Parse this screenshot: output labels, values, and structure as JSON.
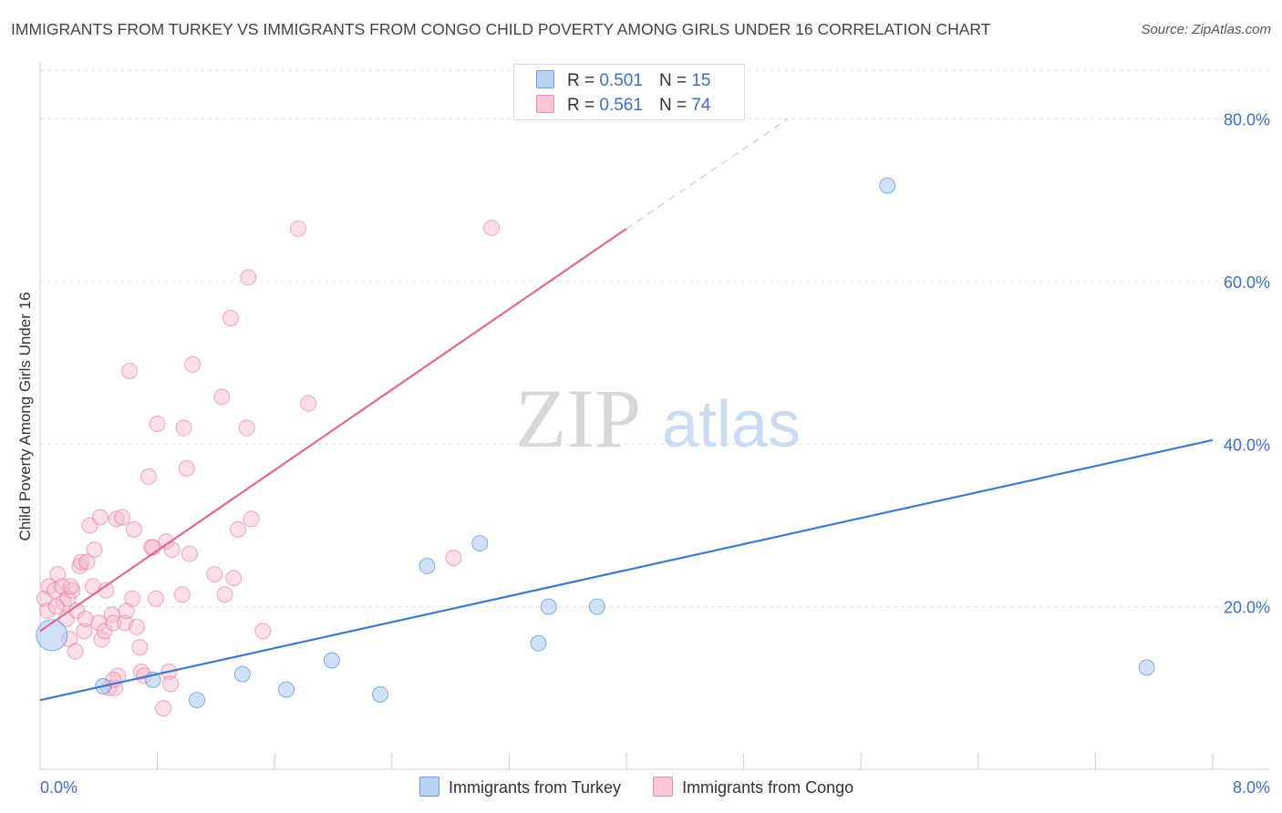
{
  "chart_data": {
    "type": "scatter",
    "title": "IMMIGRANTS FROM TURKEY VS IMMIGRANTS FROM CONGO CHILD POVERTY AMONG GIRLS UNDER 16 CORRELATION CHART",
    "source": "Source: ZipAtlas.com",
    "xlabel": "",
    "ylabel": "Child Poverty Among Girls Under 16",
    "xlim": [
      0,
      8
    ],
    "ylim": [
      0,
      86
    ],
    "x_tick_labels": {
      "min": "0.0%",
      "max": "8.0%"
    },
    "y_ticks": [
      {
        "value": 20,
        "label": "20.0%"
      },
      {
        "value": 40,
        "label": "40.0%"
      },
      {
        "value": 60,
        "label": "60.0%"
      },
      {
        "value": 80,
        "label": "80.0%"
      }
    ],
    "watermark": {
      "zip": "ZIP",
      "atlas": "atlas"
    },
    "legend": {
      "r_label": "R =",
      "n_label": "N ="
    },
    "series": [
      {
        "name": "Immigrants from Turkey",
        "color": "#3b7bd4",
        "fill": "#a9c8f0",
        "R": "0.501",
        "N": "15",
        "trend": {
          "x0": 0,
          "y0": 8.5,
          "x1": 8,
          "y1": 40.5
        },
        "points": [
          {
            "x": 0.08,
            "y": 16.5,
            "big": true
          },
          {
            "x": 0.43,
            "y": 10.2
          },
          {
            "x": 0.77,
            "y": 11.0
          },
          {
            "x": 1.07,
            "y": 8.5
          },
          {
            "x": 1.38,
            "y": 11.7
          },
          {
            "x": 1.68,
            "y": 9.8
          },
          {
            "x": 1.99,
            "y": 13.4
          },
          {
            "x": 2.32,
            "y": 9.2
          },
          {
            "x": 2.64,
            "y": 25.0
          },
          {
            "x": 3.0,
            "y": 27.8
          },
          {
            "x": 3.4,
            "y": 15.5
          },
          {
            "x": 3.47,
            "y": 20.0
          },
          {
            "x": 3.8,
            "y": 20.0
          },
          {
            "x": 5.78,
            "y": 71.8
          },
          {
            "x": 7.55,
            "y": 12.5
          }
        ]
      },
      {
        "name": "Immigrants from Congo",
        "color": "#e5668f",
        "fill": "#f5b8cb",
        "R": "0.561",
        "N": "74",
        "trend": {
          "x0": 0,
          "y0": 17.0,
          "x1": 4.0,
          "y1": 66.5
        },
        "trend_ext": {
          "x0": 4.0,
          "y0": 66.5,
          "x1": 5.1,
          "y1": 80.0
        },
        "points": [
          {
            "x": 0.03,
            "y": 21.0
          },
          {
            "x": 0.05,
            "y": 19.5
          },
          {
            "x": 0.06,
            "y": 22.5
          },
          {
            "x": 0.1,
            "y": 22.0
          },
          {
            "x": 0.12,
            "y": 24.0
          },
          {
            "x": 0.15,
            "y": 22.5
          },
          {
            "x": 0.16,
            "y": 20.5
          },
          {
            "x": 0.18,
            "y": 18.5
          },
          {
            "x": 0.19,
            "y": 21.0
          },
          {
            "x": 0.2,
            "y": 16.0
          },
          {
            "x": 0.22,
            "y": 22.0
          },
          {
            "x": 0.24,
            "y": 14.5
          },
          {
            "x": 0.25,
            "y": 19.5
          },
          {
            "x": 0.27,
            "y": 25.0
          },
          {
            "x": 0.28,
            "y": 25.5
          },
          {
            "x": 0.3,
            "y": 17.0
          },
          {
            "x": 0.31,
            "y": 18.5
          },
          {
            "x": 0.32,
            "y": 25.5
          },
          {
            "x": 0.34,
            "y": 30.0
          },
          {
            "x": 0.36,
            "y": 22.5
          },
          {
            "x": 0.37,
            "y": 27.0
          },
          {
            "x": 0.4,
            "y": 18.0
          },
          {
            "x": 0.41,
            "y": 31.0
          },
          {
            "x": 0.42,
            "y": 16.0
          },
          {
            "x": 0.44,
            "y": 17.0
          },
          {
            "x": 0.45,
            "y": 22.0
          },
          {
            "x": 0.47,
            "y": 10.0
          },
          {
            "x": 0.49,
            "y": 19.0
          },
          {
            "x": 0.5,
            "y": 18.0
          },
          {
            "x": 0.51,
            "y": 10.0
          },
          {
            "x": 0.52,
            "y": 30.8
          },
          {
            "x": 0.53,
            "y": 11.5
          },
          {
            "x": 0.56,
            "y": 31.0
          },
          {
            "x": 0.58,
            "y": 18.0
          },
          {
            "x": 0.59,
            "y": 19.5
          },
          {
            "x": 0.61,
            "y": 49.0
          },
          {
            "x": 0.63,
            "y": 21.0
          },
          {
            "x": 0.64,
            "y": 29.5
          },
          {
            "x": 0.66,
            "y": 17.5
          },
          {
            "x": 0.68,
            "y": 15.0
          },
          {
            "x": 0.69,
            "y": 12.0
          },
          {
            "x": 0.71,
            "y": 11.5
          },
          {
            "x": 0.74,
            "y": 36.0
          },
          {
            "x": 0.76,
            "y": 27.3
          },
          {
            "x": 0.77,
            "y": 27.3
          },
          {
            "x": 0.79,
            "y": 21.0
          },
          {
            "x": 0.8,
            "y": 42.5
          },
          {
            "x": 0.84,
            "y": 7.5
          },
          {
            "x": 0.86,
            "y": 28.0
          },
          {
            "x": 0.88,
            "y": 12.0
          },
          {
            "x": 0.89,
            "y": 10.5
          },
          {
            "x": 0.9,
            "y": 27.0
          },
          {
            "x": 0.97,
            "y": 21.5
          },
          {
            "x": 0.98,
            "y": 42.0
          },
          {
            "x": 1.0,
            "y": 37.0
          },
          {
            "x": 1.02,
            "y": 26.5
          },
          {
            "x": 1.04,
            "y": 49.8
          },
          {
            "x": 1.19,
            "y": 24.0
          },
          {
            "x": 1.24,
            "y": 45.8
          },
          {
            "x": 1.26,
            "y": 21.5
          },
          {
            "x": 1.3,
            "y": 55.5
          },
          {
            "x": 1.32,
            "y": 23.5
          },
          {
            "x": 1.35,
            "y": 29.5
          },
          {
            "x": 1.41,
            "y": 42.0
          },
          {
            "x": 1.42,
            "y": 60.5
          },
          {
            "x": 1.44,
            "y": 30.8
          },
          {
            "x": 1.52,
            "y": 17.0
          },
          {
            "x": 1.76,
            "y": 66.5
          },
          {
            "x": 1.83,
            "y": 45.0
          },
          {
            "x": 2.82,
            "y": 26.0
          },
          {
            "x": 3.08,
            "y": 66.6
          },
          {
            "x": 0.11,
            "y": 20.0
          },
          {
            "x": 0.21,
            "y": 22.5
          },
          {
            "x": 0.5,
            "y": 11.0
          }
        ]
      }
    ]
  }
}
